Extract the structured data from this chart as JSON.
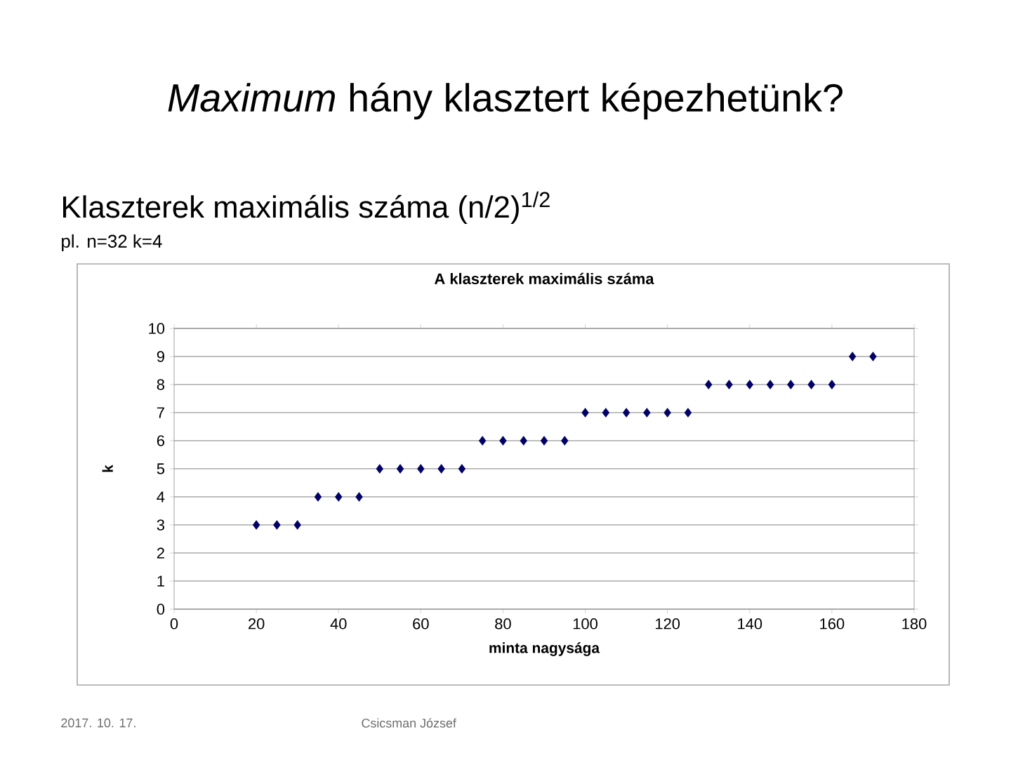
{
  "chart_data": {
    "type": "scatter",
    "title": "A klaszterek maximális száma",
    "xlabel": "minta nagysága",
    "ylabel": "k",
    "annotations": [
      "*Maximum* hány klasztert képezhetünk?",
      "Klaszterek maximális száma (n/2)$^{1/2}$",
      "pl. n=32 k=4",
      "2017. 10. 17.",
      "Csicsman József"
    ],
    "x": [
      20,
      25,
      30,
      35,
      40,
      45,
      50,
      55,
      60,
      65,
      70,
      75,
      80,
      85,
      90,
      95,
      100,
      105,
      110,
      115,
      120,
      125,
      130,
      135,
      140,
      145,
      150,
      155,
      160,
      165,
      170
    ],
    "values": [
      3,
      3,
      3,
      4,
      4,
      4,
      5,
      5,
      5,
      5,
      5,
      6,
      6,
      6,
      6,
      6,
      7,
      7,
      7,
      7,
      7,
      7,
      8,
      8,
      8,
      8,
      8,
      8,
      8,
      9,
      9
    ],
    "color": "#000066",
    "marker": "diamond",
    "grid": "y",
    "xlim": [
      0,
      180
    ],
    "ylim": [
      0,
      10
    ],
    "xticks": [
      0,
      20,
      40,
      60,
      80,
      100,
      120,
      140,
      160,
      180
    ],
    "yticks": [
      0,
      1,
      2,
      3,
      4,
      5,
      6,
      7,
      8,
      9,
      10
    ]
  }
}
